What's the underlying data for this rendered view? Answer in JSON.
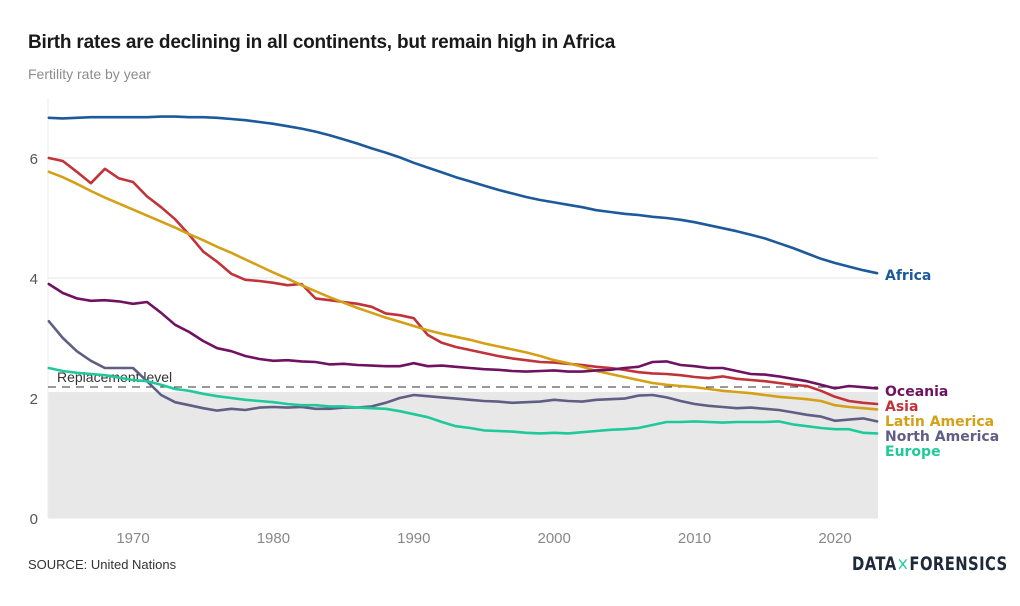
{
  "header": {
    "title": "Birth rates are declining in all continents, but remain high in Africa",
    "subtitle": "Fertility rate by year"
  },
  "footer": {
    "source": "SOURCE: United Nations",
    "logo_left": "DATA",
    "logo_mid": "×",
    "logo_right": "FORENSICS"
  },
  "chart_data": {
    "type": "line",
    "title": "Birth rates are declining in all continents, but remain high in Africa",
    "subtitle": "Fertility rate by year",
    "xlabel": "",
    "ylabel": "",
    "xlim": [
      1964,
      2023
    ],
    "ylim": [
      0,
      7
    ],
    "x_ticks": [
      1970,
      1980,
      1990,
      2000,
      2010,
      2020
    ],
    "y_ticks": [
      0,
      2,
      4,
      6
    ],
    "grid": "horizontal",
    "legend": "direct-labels-right",
    "reference_line": {
      "value": 2.1,
      "label": "Replacement level",
      "shaded_below": true
    },
    "x": [
      1964,
      1965,
      1966,
      1967,
      1968,
      1969,
      1970,
      1971,
      1972,
      1973,
      1974,
      1975,
      1976,
      1977,
      1978,
      1979,
      1980,
      1981,
      1982,
      1983,
      1984,
      1985,
      1986,
      1987,
      1988,
      1989,
      1990,
      1991,
      1992,
      1993,
      1994,
      1995,
      1996,
      1997,
      1998,
      1999,
      2000,
      2001,
      2002,
      2003,
      2004,
      2005,
      2006,
      2007,
      2008,
      2009,
      2010,
      2011,
      2012,
      2013,
      2014,
      2015,
      2016,
      2017,
      2018,
      2019,
      2020,
      2021,
      2022,
      2023
    ],
    "series": [
      {
        "name": "Africa",
        "color": "#1c5a9c",
        "values": [
          6.67,
          6.66,
          6.67,
          6.68,
          6.68,
          6.68,
          6.68,
          6.68,
          6.69,
          6.69,
          6.68,
          6.68,
          6.67,
          6.65,
          6.63,
          6.6,
          6.57,
          6.53,
          6.49,
          6.44,
          6.38,
          6.31,
          6.24,
          6.16,
          6.09,
          6.01,
          5.92,
          5.84,
          5.76,
          5.68,
          5.61,
          5.54,
          5.47,
          5.41,
          5.35,
          5.3,
          5.26,
          5.22,
          5.18,
          5.13,
          5.1,
          5.07,
          5.05,
          5.02,
          5.0,
          4.97,
          4.93,
          4.88,
          4.83,
          4.78,
          4.72,
          4.66,
          4.58,
          4.5,
          4.41,
          4.32,
          4.25,
          4.19,
          4.13,
          4.08
        ]
      },
      {
        "name": "Asia",
        "color": "#c0333a",
        "values": [
          6.0,
          5.95,
          5.77,
          5.58,
          5.82,
          5.66,
          5.6,
          5.36,
          5.18,
          4.98,
          4.72,
          4.44,
          4.27,
          4.07,
          3.97,
          3.95,
          3.92,
          3.88,
          3.9,
          3.66,
          3.63,
          3.6,
          3.57,
          3.52,
          3.41,
          3.38,
          3.33,
          3.05,
          2.92,
          2.85,
          2.8,
          2.75,
          2.7,
          2.66,
          2.63,
          2.6,
          2.59,
          2.57,
          2.55,
          2.52,
          2.5,
          2.47,
          2.43,
          2.41,
          2.4,
          2.38,
          2.35,
          2.33,
          2.36,
          2.32,
          2.3,
          2.28,
          2.25,
          2.22,
          2.2,
          2.12,
          2.02,
          1.95,
          1.92,
          1.9
        ]
      },
      {
        "name": "Latin America",
        "color": "#d4a017",
        "values": [
          5.77,
          5.68,
          5.57,
          5.45,
          5.34,
          5.24,
          5.14,
          5.04,
          4.94,
          4.84,
          4.73,
          4.63,
          4.52,
          4.42,
          4.31,
          4.2,
          4.09,
          3.99,
          3.88,
          3.78,
          3.68,
          3.59,
          3.5,
          3.42,
          3.34,
          3.27,
          3.2,
          3.13,
          3.07,
          3.02,
          2.97,
          2.91,
          2.86,
          2.81,
          2.76,
          2.7,
          2.63,
          2.58,
          2.52,
          2.45,
          2.4,
          2.35,
          2.3,
          2.25,
          2.22,
          2.2,
          2.18,
          2.15,
          2.12,
          2.1,
          2.08,
          2.05,
          2.02,
          2.0,
          1.98,
          1.95,
          1.88,
          1.85,
          1.83,
          1.81
        ]
      },
      {
        "name": "Oceania",
        "color": "#6e1261",
        "values": [
          3.9,
          3.75,
          3.66,
          3.62,
          3.63,
          3.61,
          3.57,
          3.6,
          3.42,
          3.22,
          3.1,
          2.95,
          2.83,
          2.78,
          2.7,
          2.65,
          2.62,
          2.63,
          2.61,
          2.6,
          2.56,
          2.57,
          2.55,
          2.54,
          2.53,
          2.53,
          2.58,
          2.53,
          2.54,
          2.52,
          2.5,
          2.48,
          2.47,
          2.45,
          2.44,
          2.45,
          2.46,
          2.44,
          2.44,
          2.46,
          2.47,
          2.5,
          2.52,
          2.6,
          2.61,
          2.55,
          2.53,
          2.5,
          2.5,
          2.45,
          2.4,
          2.39,
          2.36,
          2.32,
          2.28,
          2.22,
          2.16,
          2.2,
          2.18,
          2.16
        ]
      },
      {
        "name": "North America",
        "color": "#5f5f85",
        "values": [
          3.28,
          3.0,
          2.78,
          2.62,
          2.5,
          2.5,
          2.5,
          2.28,
          2.05,
          1.93,
          1.88,
          1.83,
          1.79,
          1.82,
          1.8,
          1.84,
          1.85,
          1.84,
          1.85,
          1.82,
          1.82,
          1.84,
          1.84,
          1.86,
          1.92,
          2.0,
          2.05,
          2.03,
          2.01,
          1.99,
          1.97,
          1.95,
          1.94,
          1.92,
          1.93,
          1.94,
          1.97,
          1.95,
          1.94,
          1.97,
          1.98,
          1.99,
          2.04,
          2.05,
          2.01,
          1.95,
          1.9,
          1.87,
          1.85,
          1.83,
          1.84,
          1.82,
          1.8,
          1.76,
          1.72,
          1.69,
          1.62,
          1.64,
          1.66,
          1.61
        ]
      },
      {
        "name": "Europe",
        "color": "#1fc99a",
        "values": [
          2.5,
          2.45,
          2.42,
          2.4,
          2.38,
          2.34,
          2.3,
          2.28,
          2.22,
          2.15,
          2.12,
          2.07,
          2.03,
          2.0,
          1.97,
          1.95,
          1.93,
          1.9,
          1.88,
          1.88,
          1.86,
          1.86,
          1.84,
          1.83,
          1.82,
          1.78,
          1.73,
          1.68,
          1.6,
          1.53,
          1.5,
          1.46,
          1.45,
          1.44,
          1.42,
          1.41,
          1.42,
          1.41,
          1.43,
          1.45,
          1.47,
          1.48,
          1.5,
          1.55,
          1.6,
          1.6,
          1.61,
          1.6,
          1.59,
          1.6,
          1.6,
          1.6,
          1.61,
          1.56,
          1.53,
          1.5,
          1.48,
          1.48,
          1.42,
          1.41
        ]
      }
    ]
  }
}
